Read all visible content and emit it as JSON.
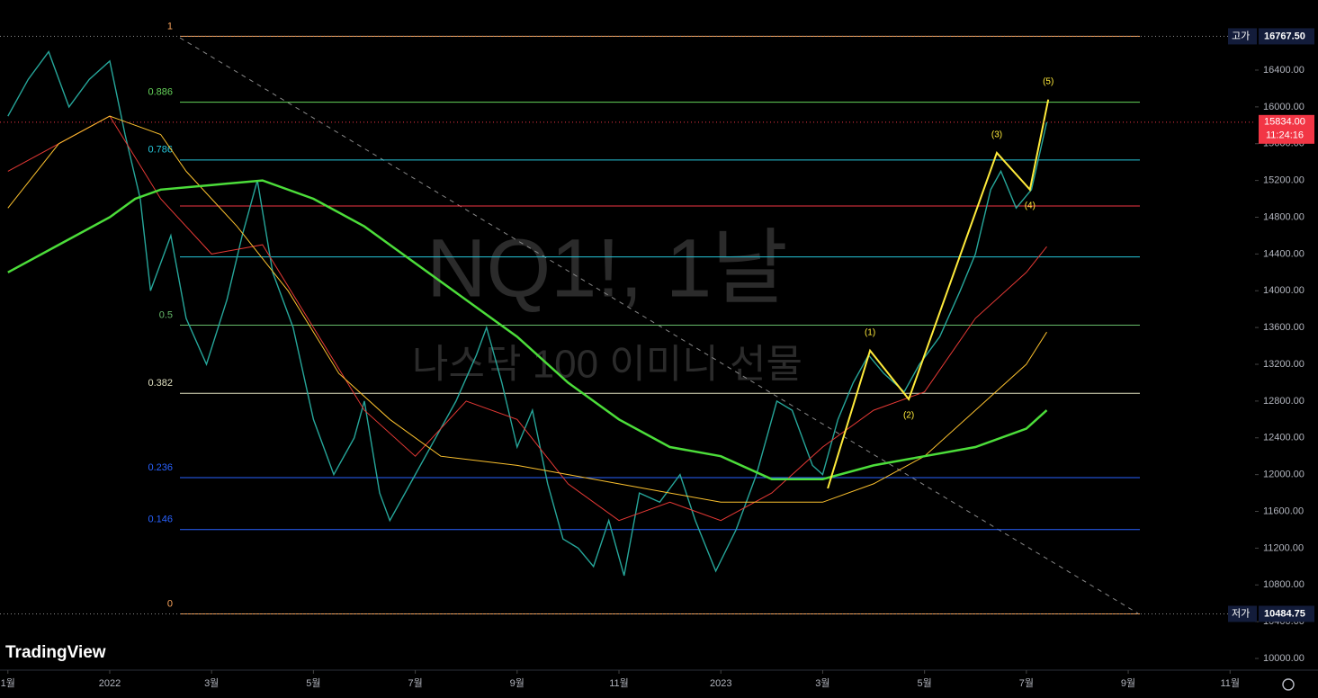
{
  "chart_data": {
    "type": "line",
    "title": "NQ1!, 1날",
    "subtitle": "나스닥 100 이미니 선물",
    "brand": "TradingView",
    "xlim": [
      -2.155,
      22.49
    ],
    "ylim": [
      9873,
      17163
    ],
    "xticks": [
      {
        "value": -2,
        "label": "1월"
      },
      {
        "value": 0,
        "label": "2022"
      },
      {
        "value": 2,
        "label": "3월"
      },
      {
        "value": 4,
        "label": "5월"
      },
      {
        "value": 6,
        "label": "7월"
      },
      {
        "value": 8,
        "label": "9월"
      },
      {
        "value": 10,
        "label": "11월"
      },
      {
        "value": 12,
        "label": "2023"
      },
      {
        "value": 14,
        "label": "3월"
      },
      {
        "value": 16,
        "label": "5월"
      },
      {
        "value": 18,
        "label": "7월"
      },
      {
        "value": 20,
        "label": "9월"
      },
      {
        "value": 22,
        "label": "11월"
      }
    ],
    "yticks": [
      {
        "value": 10000,
        "label": "10000.00"
      },
      {
        "value": 10400,
        "label": "10400.00"
      },
      {
        "value": 10800,
        "label": "10800.00"
      },
      {
        "value": 11200,
        "label": "11200.00"
      },
      {
        "value": 11600,
        "label": "11600.00"
      },
      {
        "value": 12000,
        "label": "12000.00"
      },
      {
        "value": 12400,
        "label": "12400.00"
      },
      {
        "value": 12800,
        "label": "12800.00"
      },
      {
        "value": 13200,
        "label": "13200.00"
      },
      {
        "value": 13600,
        "label": "13600.00"
      },
      {
        "value": 14000,
        "label": "14000.00"
      },
      {
        "value": 14400,
        "label": "14400.00"
      },
      {
        "value": 14800,
        "label": "14800.00"
      },
      {
        "value": 15200,
        "label": "15200.00"
      },
      {
        "value": 15600,
        "label": "15600.00"
      },
      {
        "value": 16000,
        "label": "16000.00"
      },
      {
        "value": 16400,
        "label": "16400.00"
      }
    ],
    "series": [
      {
        "color": "#26a69a",
        "width": 1.4,
        "x": [
          -2,
          -1.6,
          -1.2,
          -0.8,
          -0.4,
          0,
          0.3,
          0.6,
          0.8,
          1.0,
          1.2,
          1.5,
          1.9,
          2.3,
          2.6,
          2.9,
          3.2,
          3.6,
          4.0,
          4.4,
          4.8,
          5.0,
          5.3,
          5.5,
          6.0,
          6.4,
          6.8,
          7.2,
          7.4,
          7.7,
          8.0,
          8.3,
          8.6,
          8.9,
          9.2,
          9.5,
          9.8,
          10.1,
          10.4,
          10.8,
          11.2,
          11.5,
          11.9,
          12.3,
          12.7,
          13.1,
          13.4,
          13.8,
          14.0,
          14.3,
          14.6,
          14.9,
          15.2,
          15.6,
          15.9,
          16.3,
          16.7,
          17.0,
          17.3,
          17.5,
          17.8,
          18.1,
          18.4
        ],
        "values": [
          15900,
          16300,
          16600,
          16000,
          16300,
          16500,
          15700,
          15000,
          14000,
          14300,
          14600,
          13700,
          13200,
          13900,
          14600,
          15200,
          14200,
          13600,
          12600,
          12000,
          12400,
          12800,
          11800,
          11500,
          12000,
          12400,
          12800,
          13300,
          13600,
          13000,
          12300,
          12700,
          11900,
          11300,
          11200,
          11000,
          11500,
          10900,
          11800,
          11700,
          12000,
          11500,
          10950,
          11400,
          12000,
          12800,
          12700,
          12100,
          12000,
          12600,
          13000,
          13300,
          13100,
          12900,
          13200,
          13500,
          14000,
          14400,
          15100,
          15300,
          14900,
          15100,
          15834
        ]
      },
      {
        "color": "#e53935",
        "width": 1,
        "x": [
          -2,
          0,
          1,
          2,
          3,
          4,
          5,
          6,
          7,
          8,
          9,
          10,
          11,
          12,
          13,
          14,
          15,
          16,
          17,
          18,
          18.4
        ],
        "values": [
          15300,
          15900,
          15000,
          14400,
          14500,
          13600,
          12700,
          12200,
          12800,
          12600,
          11900,
          11500,
          11700,
          11500,
          11800,
          12300,
          12700,
          12900,
          13700,
          14200,
          14480
        ]
      },
      {
        "color": "#fbc02d",
        "width": 1,
        "x": [
          -2,
          -1,
          0,
          1,
          1.5,
          2.5,
          3.5,
          4.5,
          5.5,
          6.5,
          8,
          9,
          10,
          11,
          12,
          13,
          14,
          15,
          16,
          17,
          18,
          18.4
        ],
        "values": [
          14900,
          15600,
          15900,
          15700,
          15300,
          14700,
          14000,
          13100,
          12600,
          12200,
          12100,
          12000,
          11900,
          11800,
          11700,
          11700,
          11700,
          11900,
          12200,
          12700,
          13200,
          13550
        ]
      },
      {
        "color": "#4cdd3a",
        "width": 2.5,
        "x": [
          -2,
          -1,
          0,
          0.5,
          1,
          2,
          3,
          4,
          5,
          6,
          7,
          8,
          9,
          10,
          11,
          12,
          13,
          14,
          15,
          16,
          17,
          18,
          18.4
        ],
        "values": [
          14200,
          14500,
          14800,
          15000,
          15100,
          15150,
          15200,
          15000,
          14700,
          14300,
          13900,
          13500,
          13000,
          12600,
          12300,
          12200,
          11950,
          11950,
          12100,
          12200,
          12300,
          12500,
          12700
        ]
      }
    ],
    "fib_levels": [
      {
        "ratio": 1,
        "value": 16767.5,
        "color": "#f7a35c"
      },
      {
        "ratio": 0.886,
        "value": 16051,
        "color": "#66d45a"
      },
      {
        "ratio": 0.786,
        "value": 15423,
        "color": "#26c6da"
      },
      {
        "ratio": null,
        "value": 14922,
        "color": "#f23645"
      },
      {
        "ratio": null,
        "value": 14368,
        "color": "#26c6da"
      },
      {
        "ratio": 0.5,
        "value": 13626,
        "color": "#66bb6a"
      },
      {
        "ratio": 0.382,
        "value": 12885,
        "color": "#e0e0c0"
      },
      {
        "ratio": 0.236,
        "value": 11967,
        "color": "#2962ff"
      },
      {
        "ratio": 0.146,
        "value": 11402,
        "color": "#2962ff"
      },
      {
        "ratio": 0,
        "value": 10484.75,
        "color": "#f7a35c"
      }
    ],
    "waves": {
      "color": "#ffeb3b",
      "x": [
        14.1,
        14.93,
        15.69,
        17.42,
        18.07,
        18.43
      ],
      "values": [
        11850,
        13350,
        12820,
        15500,
        15100,
        16080
      ],
      "labels": [
        null,
        "(1)",
        "(2)",
        "(3)",
        "(4)",
        "(5)"
      ]
    },
    "high": {
      "tag": "고가",
      "value": 16767.5,
      "label": "16767.50"
    },
    "low": {
      "tag": "저가",
      "value": 10484.75,
      "label": "10484.75"
    },
    "last": {
      "value": 15834,
      "label": "15834.00",
      "countdown": "11:24:16"
    }
  }
}
